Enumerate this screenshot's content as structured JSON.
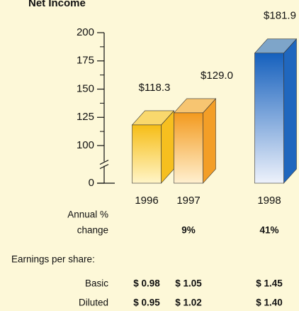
{
  "chart_data": {
    "type": "bar3d",
    "title": "Net Income",
    "categories": [
      "1996",
      "1997",
      "1998"
    ],
    "values": [
      118.3,
      129.0,
      181.9
    ],
    "value_labels": [
      "$118.3",
      "$129.0",
      "$181.9"
    ],
    "colors": [
      "#f6bd16",
      "#f39a1e",
      "#1560bd"
    ],
    "highlight_color": "#1560bd",
    "ylim": [
      0,
      200
    ],
    "yticks": [
      0,
      100,
      125,
      150,
      175,
      200
    ],
    "axis_break": [
      0,
      100
    ],
    "table": {
      "annual_change": {
        "label": [
          "Annual %",
          "change"
        ],
        "cells": [
          null,
          "9%",
          "41%"
        ]
      },
      "eps_heading": "Earnings per share:",
      "rows": [
        {
          "label": "Basic",
          "cells": [
            "$ 0.98",
            "$ 1.05",
            "$ 1.45"
          ]
        },
        {
          "label": "Diluted",
          "cells": [
            "$ 0.95",
            "$ 1.02",
            "$ 1.40"
          ]
        }
      ]
    }
  }
}
